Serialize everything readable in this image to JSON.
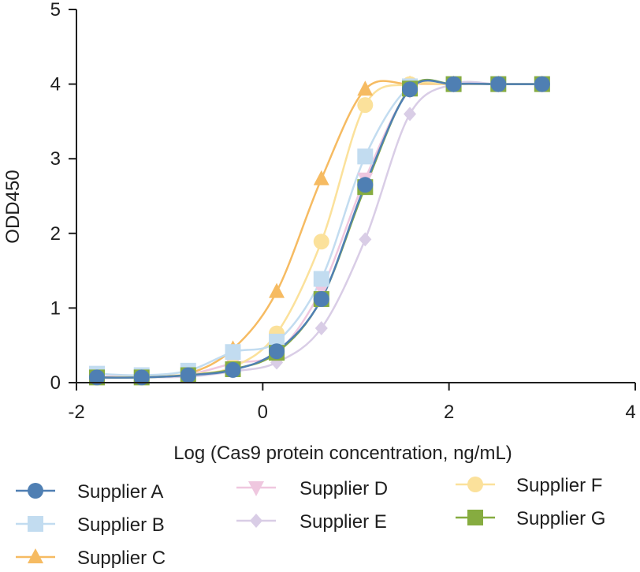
{
  "chart_data": {
    "type": "scatter",
    "xlabel": "Log (Cas9 protein concentration, ng/mL)",
    "ylabel": "ODD450",
    "xlim": [
      -2,
      4
    ],
    "ylim": [
      0,
      5
    ],
    "xticks": [
      -2,
      0,
      2,
      4
    ],
    "yticks": [
      0,
      1,
      2,
      3,
      4,
      5
    ],
    "xtick_labels": [
      "-2",
      "0",
      "2",
      "4"
    ],
    "ytick_labels": [
      "0",
      "1",
      "2",
      "3",
      "4",
      "5"
    ],
    "grid": false,
    "legend_position": "bottom",
    "x": [
      -1.78,
      -1.3,
      -0.8,
      -0.32,
      0.15,
      0.63,
      1.1,
      1.58,
      2.05,
      2.53,
      3.0
    ],
    "series": [
      {
        "name": "Supplier A",
        "color": "#4f7fb3",
        "marker": "circle",
        "y": [
          0.07,
          0.07,
          0.1,
          0.17,
          0.42,
          1.12,
          2.65,
          3.93,
          4.0,
          4.0,
          4.0
        ]
      },
      {
        "name": "Supplier B",
        "color": "#c2dcf0",
        "marker": "square",
        "y": [
          0.12,
          0.1,
          0.16,
          0.41,
          0.55,
          1.39,
          3.03,
          3.97,
          4.0,
          4.0,
          4.0
        ]
      },
      {
        "name": "Supplier C",
        "color": "#f6bb62",
        "marker": "triangle-up",
        "y": [
          0.06,
          0.08,
          0.12,
          0.45,
          1.22,
          2.73,
          3.93,
          4.0,
          4.0,
          4.0,
          4.0
        ]
      },
      {
        "name": "Supplier D",
        "color": "#efc7df",
        "marker": "triangle-down",
        "y": [
          0.08,
          0.09,
          0.11,
          0.26,
          0.4,
          1.25,
          2.73,
          3.92,
          4.0,
          4.0,
          4.0
        ]
      },
      {
        "name": "Supplier E",
        "color": "#d9cde6",
        "marker": "diamond",
        "y": [
          0.06,
          0.07,
          0.08,
          0.15,
          0.27,
          0.73,
          1.92,
          3.6,
          4.0,
          4.0,
          4.0
        ]
      },
      {
        "name": "Supplier F",
        "color": "#fbe19b",
        "marker": "circle",
        "y": [
          0.07,
          0.08,
          0.11,
          0.21,
          0.66,
          1.89,
          3.72,
          4.0,
          4.0,
          4.0,
          4.0
        ]
      },
      {
        "name": "Supplier G",
        "color": "#86ac40",
        "marker": "square",
        "y": [
          0.07,
          0.07,
          0.1,
          0.18,
          0.4,
          1.12,
          2.62,
          3.94,
          4.0,
          4.0,
          4.0
        ]
      }
    ]
  }
}
